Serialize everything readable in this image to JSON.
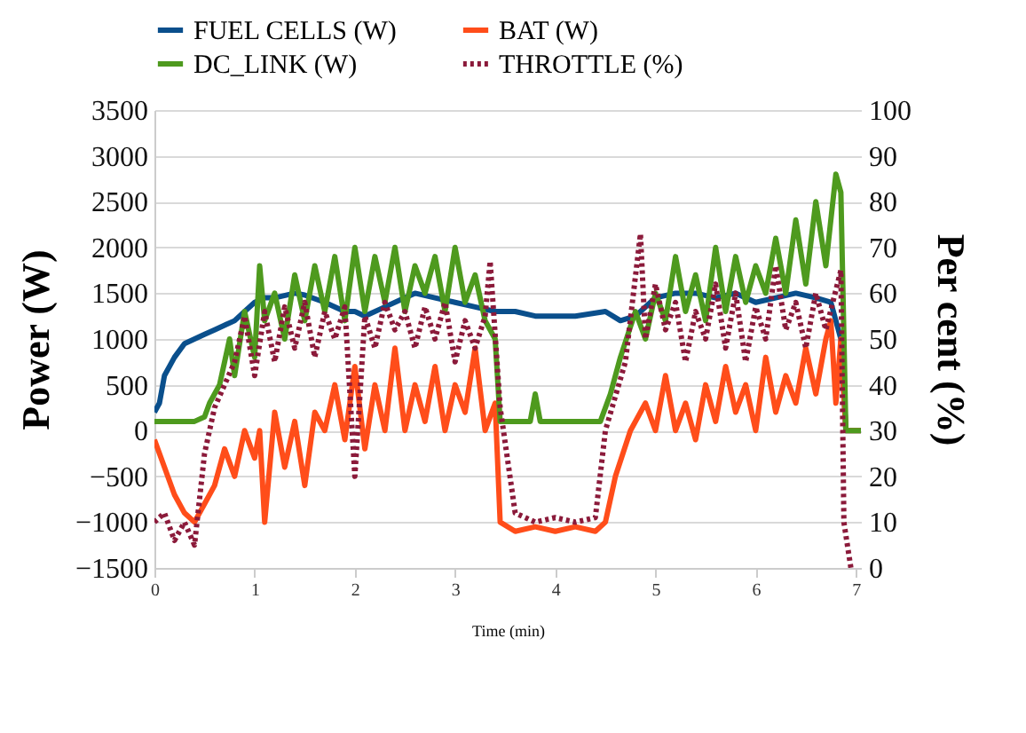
{
  "chart_data": {
    "type": "line",
    "xlabel": "Time (min)",
    "ylabel": "Power (W)",
    "y2label": "Per cent (%)",
    "xlim": [
      0,
      7.05
    ],
    "xticks": [
      0,
      1,
      2,
      3,
      4,
      5,
      6,
      7
    ],
    "ylim": [
      -1500,
      3500
    ],
    "yticks": [
      -1500,
      -1000,
      -500,
      0,
      500,
      1000,
      1500,
      2000,
      2500,
      3000,
      3500
    ],
    "y2lim": [
      0,
      100
    ],
    "y2ticks": [
      0,
      10,
      20,
      30,
      40,
      50,
      60,
      70,
      80,
      90,
      100
    ],
    "grid": "y",
    "legend": "top",
    "marker": "none",
    "series": [
      {
        "name": "FUEL CELLS (W)",
        "color": "#0a4f8c",
        "line_style": "solid",
        "x": [
          0,
          0.05,
          0.1,
          0.2,
          0.3,
          0.4,
          0.5,
          0.6,
          0.7,
          0.8,
          0.9,
          1.0,
          1.1,
          1.2,
          1.4,
          1.5,
          1.7,
          1.9,
          2.0,
          2.1,
          2.3,
          2.5,
          2.6,
          2.8,
          3.0,
          3.2,
          3.4,
          3.6,
          3.8,
          4.0,
          4.2,
          4.5,
          4.65,
          4.8,
          5.0,
          5.2,
          5.4,
          5.6,
          5.8,
          6.0,
          6.2,
          6.4,
          6.6,
          6.75,
          6.85,
          6.9,
          7.05
        ],
        "values": [
          200,
          300,
          600,
          800,
          950,
          1000,
          1050,
          1100,
          1150,
          1200,
          1300,
          1400,
          1450,
          1450,
          1500,
          1480,
          1400,
          1300,
          1300,
          1250,
          1350,
          1450,
          1500,
          1450,
          1400,
          1350,
          1300,
          1300,
          1250,
          1250,
          1250,
          1300,
          1200,
          1250,
          1450,
          1500,
          1500,
          1450,
          1500,
          1400,
          1450,
          1500,
          1450,
          1400,
          1000,
          0,
          0
        ]
      },
      {
        "name": "BAT (W)",
        "color": "#ff4d1a",
        "line_style": "solid",
        "x": [
          0,
          0.1,
          0.2,
          0.3,
          0.4,
          0.5,
          0.6,
          0.7,
          0.8,
          0.9,
          1.0,
          1.05,
          1.1,
          1.2,
          1.3,
          1.4,
          1.5,
          1.6,
          1.7,
          1.8,
          1.9,
          2.0,
          2.1,
          2.2,
          2.3,
          2.4,
          2.5,
          2.6,
          2.7,
          2.8,
          2.9,
          3.0,
          3.1,
          3.2,
          3.3,
          3.4,
          3.45,
          3.6,
          3.8,
          4.0,
          4.2,
          4.4,
          4.5,
          4.6,
          4.75,
          4.9,
          5.0,
          5.1,
          5.2,
          5.3,
          5.4,
          5.5,
          5.6,
          5.7,
          5.8,
          5.9,
          6.0,
          6.1,
          6.2,
          6.3,
          6.4,
          6.5,
          6.6,
          6.7,
          6.75,
          6.8,
          6.85,
          6.9,
          7.05
        ],
        "values": [
          -100,
          -400,
          -700,
          -900,
          -1000,
          -800,
          -600,
          -200,
          -500,
          0,
          -300,
          0,
          -1000,
          200,
          -400,
          100,
          -600,
          200,
          0,
          500,
          -100,
          700,
          -200,
          500,
          0,
          900,
          0,
          500,
          100,
          700,
          0,
          500,
          200,
          900,
          0,
          300,
          -1000,
          -1100,
          -1050,
          -1100,
          -1050,
          -1100,
          -1000,
          -500,
          0,
          300,
          0,
          600,
          0,
          300,
          -100,
          500,
          100,
          700,
          200,
          500,
          0,
          800,
          200,
          600,
          300,
          900,
          400,
          1000,
          1200,
          300,
          1000,
          0,
          0
        ]
      },
      {
        "name": "DC_LINK (W)",
        "color": "#4e9a1e",
        "line_style": "solid",
        "x": [
          0,
          0.2,
          0.4,
          0.5,
          0.55,
          0.65,
          0.75,
          0.8,
          0.9,
          1.0,
          1.05,
          1.1,
          1.2,
          1.3,
          1.4,
          1.5,
          1.6,
          1.7,
          1.8,
          1.9,
          2.0,
          2.1,
          2.2,
          2.3,
          2.4,
          2.5,
          2.6,
          2.7,
          2.8,
          2.9,
          3.0,
          3.1,
          3.2,
          3.3,
          3.4,
          3.45,
          3.6,
          3.75,
          3.8,
          3.85,
          4.0,
          4.2,
          4.45,
          4.55,
          4.65,
          4.8,
          4.9,
          5.0,
          5.1,
          5.2,
          5.3,
          5.4,
          5.5,
          5.6,
          5.7,
          5.8,
          5.9,
          6.0,
          6.1,
          6.2,
          6.3,
          6.4,
          6.5,
          6.6,
          6.7,
          6.8,
          6.85,
          6.9,
          7.05
        ],
        "values": [
          100,
          100,
          100,
          150,
          300,
          500,
          1000,
          600,
          1300,
          800,
          1800,
          1200,
          1500,
          1000,
          1700,
          1200,
          1800,
          1300,
          1900,
          1200,
          2000,
          1300,
          1900,
          1400,
          2000,
          1300,
          1800,
          1500,
          1900,
          1300,
          2000,
          1400,
          1700,
          1200,
          1000,
          100,
          100,
          100,
          400,
          100,
          100,
          100,
          100,
          400,
          800,
          1300,
          1000,
          1500,
          1200,
          1900,
          1300,
          1700,
          1200,
          2000,
          1300,
          1900,
          1400,
          1800,
          1500,
          2100,
          1500,
          2300,
          1600,
          2500,
          1800,
          2800,
          2600,
          0,
          0
        ]
      },
      {
        "name": "THROTTLE (%)",
        "color": "#8b1a3a",
        "line_style": "dotted",
        "axis": "y2",
        "x": [
          0,
          0.1,
          0.2,
          0.3,
          0.4,
          0.5,
          0.6,
          0.7,
          0.8,
          0.9,
          1.0,
          1.1,
          1.2,
          1.3,
          1.4,
          1.5,
          1.6,
          1.7,
          1.8,
          1.9,
          2.0,
          2.1,
          2.2,
          2.3,
          2.4,
          2.5,
          2.6,
          2.7,
          2.8,
          2.9,
          3.0,
          3.1,
          3.2,
          3.3,
          3.35,
          3.45,
          3.6,
          3.8,
          4.0,
          4.2,
          4.4,
          4.5,
          4.7,
          4.85,
          4.9,
          5.0,
          5.1,
          5.2,
          5.3,
          5.4,
          5.5,
          5.6,
          5.7,
          5.8,
          5.9,
          6.0,
          6.1,
          6.2,
          6.3,
          6.4,
          6.5,
          6.6,
          6.7,
          6.85,
          6.88,
          6.95
        ],
        "values": [
          10,
          12,
          6,
          10,
          5,
          25,
          35,
          40,
          45,
          55,
          42,
          56,
          45,
          57,
          48,
          58,
          46,
          56,
          50,
          57,
          20,
          55,
          48,
          58,
          52,
          56,
          48,
          57,
          50,
          58,
          45,
          54,
          48,
          55,
          67,
          35,
          12,
          10,
          11,
          10,
          11,
          30,
          45,
          73,
          50,
          62,
          52,
          58,
          45,
          56,
          50,
          62,
          48,
          60,
          45,
          57,
          50,
          66,
          52,
          58,
          48,
          60,
          52,
          65,
          10,
          0
        ]
      }
    ]
  }
}
